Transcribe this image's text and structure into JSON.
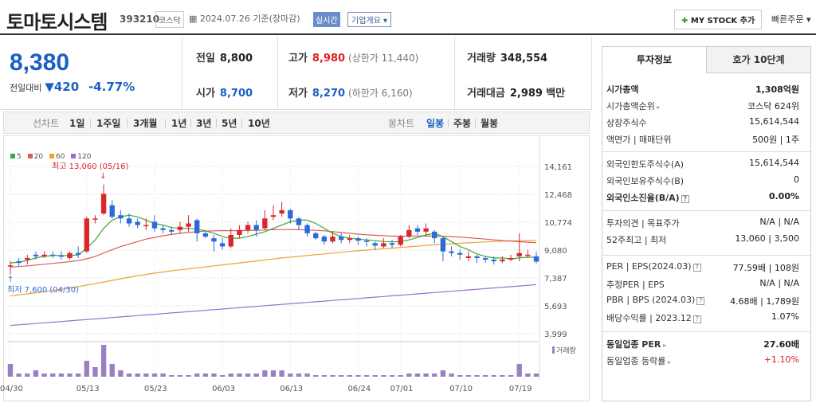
{
  "header": {
    "title": "토마토시스템",
    "code": "393210",
    "market": "코스닥",
    "date": "2024.07.26",
    "date_suffix": "기준(장마감)",
    "realtime": "실시간",
    "corp_overview": "기업개요",
    "mystock_label": "MY STOCK 추가",
    "fast_order": "빠른주문"
  },
  "price": {
    "current": "8,380",
    "change_label": "전일대비",
    "change": "420",
    "change_pct": "-4.77%"
  },
  "stats": {
    "prev_label": "전일",
    "prev": "8,800",
    "high_label": "고가",
    "high": "8,980",
    "upper_label": "(상한가 11,440)",
    "volume_label": "거래량",
    "volume": "348,554",
    "open_label": "시가",
    "open": "8,700",
    "low_label": "저가",
    "low": "8,270",
    "lower_label": "(하한가 6,160)",
    "value_label": "거래대금",
    "value": "2,989",
    "value_unit": "백만"
  },
  "periods": {
    "line_label": "선차트",
    "items": [
      "1일",
      "1주일",
      "3개월",
      "1년",
      "3년",
      "5년",
      "10년"
    ],
    "candle_label": "봉차트",
    "candle_items": [
      "일봉",
      "주봉",
      "월봉"
    ],
    "active_candle": "일봉"
  },
  "chart_data": {
    "type": "candlestick",
    "legend": [
      "5",
      "20",
      "60",
      "120"
    ],
    "legend_colors": [
      "#3aa83a",
      "#e05a5a",
      "#f0a030",
      "#9b6fd0"
    ],
    "y_ticks": [
      "14,161",
      "12,468",
      "10,774",
      "9,080",
      "7,387",
      "5,693",
      "3,999"
    ],
    "ylim": [
      3999,
      14161
    ],
    "x_ticks": [
      "04/30",
      "05/13",
      "05/23",
      "06/03",
      "06/13",
      "06/24",
      "07/01",
      "07/10",
      "07/19"
    ],
    "max_label": "최고 13,060 (05/16)",
    "min_label": "최저 7,600 (04/30)",
    "volume_label": "거래량",
    "candles": [
      [
        8150,
        8150,
        7600,
        8400
      ],
      [
        8400,
        8300,
        8100,
        8600
      ],
      [
        8500,
        8600,
        8200,
        8800
      ],
      [
        8800,
        8700,
        8500,
        9000
      ],
      [
        8700,
        8800,
        8600,
        9000
      ],
      [
        8800,
        8750,
        8600,
        9000
      ],
      [
        8750,
        8700,
        8500,
        9000
      ],
      [
        8600,
        8900,
        8500,
        9000
      ],
      [
        8900,
        8800,
        8600,
        9300
      ],
      [
        9000,
        11000,
        8900,
        11100
      ],
      [
        11000,
        11000,
        10700,
        11200
      ],
      [
        11300,
        12500,
        11200,
        13060
      ],
      [
        11800,
        11100,
        11000,
        12100
      ],
      [
        11200,
        11000,
        10700,
        11500
      ],
      [
        11000,
        10700,
        10500,
        11300
      ],
      [
        10800,
        10600,
        10400,
        11000
      ],
      [
        10600,
        10600,
        10300,
        11000
      ],
      [
        10800,
        10400,
        10200,
        11200
      ],
      [
        10400,
        10300,
        10100,
        10600
      ],
      [
        10300,
        10200,
        10000,
        10500
      ],
      [
        10300,
        10500,
        10100,
        10800
      ],
      [
        10500,
        10700,
        10200,
        11200
      ],
      [
        10900,
        10100,
        9600,
        11000
      ],
      [
        10100,
        9900,
        9800,
        10300
      ],
      [
        9800,
        9600,
        9000,
        10000
      ],
      [
        9500,
        9300,
        9100,
        9800
      ],
      [
        9300,
        10000,
        9200,
        10400
      ],
      [
        10000,
        10300,
        9800,
        10600
      ],
      [
        10300,
        10600,
        10100,
        10800
      ],
      [
        10600,
        10300,
        9900,
        10900
      ],
      [
        10400,
        11000,
        10300,
        11500
      ],
      [
        11100,
        11200,
        10900,
        11800
      ],
      [
        11300,
        11500,
        11100,
        12000
      ],
      [
        11500,
        11000,
        10700,
        11600
      ],
      [
        11000,
        10600,
        10300,
        11100
      ],
      [
        10600,
        10100,
        9900,
        10700
      ],
      [
        10100,
        9800,
        9700,
        10200
      ],
      [
        9900,
        9600,
        9400,
        10000
      ],
      [
        9600,
        9900,
        9500,
        10200
      ],
      [
        9900,
        9700,
        9500,
        10100
      ],
      [
        9700,
        9800,
        9500,
        10000
      ],
      [
        9800,
        9650,
        9400,
        9900
      ],
      [
        9650,
        9600,
        9300,
        9800
      ],
      [
        9500,
        9350,
        9100,
        9600
      ],
      [
        9300,
        9500,
        9200,
        9800
      ],
      [
        9500,
        9400,
        9200,
        9700
      ],
      [
        9400,
        9900,
        9300,
        10000
      ],
      [
        9900,
        10300,
        9800,
        10600
      ],
      [
        10400,
        10200,
        10000,
        10600
      ],
      [
        10200,
        10400,
        10000,
        10700
      ],
      [
        10200,
        9800,
        9500,
        10300
      ],
      [
        9800,
        9000,
        8400,
        9900
      ],
      [
        9000,
        8900,
        8700,
        9300
      ],
      [
        8900,
        8800,
        8500,
        9100
      ],
      [
        8600,
        8700,
        8400,
        9000
      ],
      [
        8700,
        8600,
        8300,
        8800
      ],
      [
        8600,
        8500,
        8300,
        8700
      ],
      [
        8500,
        8400,
        8200,
        8700
      ],
      [
        8400,
        8500,
        8300,
        8700
      ],
      [
        8500,
        8600,
        8400,
        8800
      ],
      [
        8700,
        8900,
        8400,
        10100
      ],
      [
        8800,
        8800,
        8600,
        9100
      ],
      [
        8700,
        8380,
        8270,
        8980
      ]
    ],
    "ma5": [
      8300,
      8350,
      8450,
      8600,
      8700,
      8750,
      8750,
      8750,
      8780,
      9200,
      9700,
      10400,
      10900,
      11100,
      11200,
      11100,
      10900,
      10700,
      10600,
      10450,
      10400,
      10400,
      10350,
      10250,
      10100,
      9900,
      9800,
      9800,
      9900,
      10050,
      10200,
      10400,
      10600,
      10800,
      10900,
      10900,
      10700,
      10400,
      10100,
      9900,
      9800,
      9750,
      9700,
      9650,
      9600,
      9580,
      9600,
      9700,
      9850,
      10000,
      10100,
      9900,
      9600,
      9300,
      9100,
      8850,
      8700,
      8600,
      8600,
      8550,
      8600,
      8650,
      8640
    ],
    "ma20": [
      8050,
      8080,
      8120,
      8170,
      8220,
      8270,
      8320,
      8380,
      8440,
      8550,
      8700,
      8900,
      9100,
      9300,
      9450,
      9600,
      9750,
      9850,
      9950,
      10030,
      10100,
      10150,
      10200,
      10230,
      10250,
      10260,
      10260,
      10260,
      10270,
      10280,
      10300,
      10320,
      10330,
      10330,
      10320,
      10300,
      10280,
      10250,
      10200,
      10150,
      10100,
      10050,
      10010,
      9980,
      9950,
      9930,
      9920,
      9920,
      9930,
      9930,
      9930,
      9920,
      9900,
      9870,
      9830,
      9790,
      9750,
      9700,
      9660,
      9620,
      9590,
      9560,
      9530
    ],
    "ma60": [
      6300,
      6360,
      6420,
      6480,
      6550,
      6620,
      6700,
      6780,
      6860,
      6950,
      7040,
      7140,
      7240,
      7340,
      7430,
      7520,
      7600,
      7680,
      7750,
      7820,
      7880,
      7940,
      8000,
      8060,
      8120,
      8180,
      8240,
      8300,
      8360,
      8420,
      8480,
      8540,
      8600,
      8650,
      8700,
      8750,
      8800,
      8850,
      8900,
      8950,
      9000,
      9040,
      9080,
      9120,
      9160,
      9200,
      9240,
      9280,
      9320,
      9360,
      9400,
      9430,
      9460,
      9490,
      9520,
      9550,
      9580,
      9600,
      9620,
      9640,
      9650,
      9660,
      9670
    ],
    "ma120": [
      4500,
      4540,
      4580,
      4620,
      4660,
      4700,
      4740,
      4780,
      4820,
      4860,
      4900,
      4940,
      4980,
      5020,
      5060,
      5100,
      5140,
      5180,
      5220,
      5260,
      5300,
      5340,
      5380,
      5420,
      5460,
      5500,
      5540,
      5580,
      5620,
      5660,
      5700,
      5740,
      5780,
      5820,
      5860,
      5900,
      5940,
      5980,
      6020,
      6060,
      6100,
      6140,
      6180,
      6220,
      6260,
      6300,
      6340,
      6380,
      6420,
      6460,
      6500,
      6540,
      6580,
      6620,
      6660,
      6700,
      6740,
      6780,
      6820,
      6860,
      6900,
      6940,
      6980
    ],
    "volume": [
      4,
      1,
      1,
      2,
      1,
      1,
      1,
      1,
      1,
      5,
      3,
      10,
      4,
      2,
      1,
      1,
      1,
      1,
      1,
      0.5,
      0.5,
      0.5,
      1,
      1,
      1,
      0.5,
      1,
      1,
      1,
      1,
      2,
      2,
      2,
      1,
      1,
      1,
      0.5,
      0.5,
      0.5,
      0.5,
      0.5,
      0.5,
      0.5,
      0.5,
      0.5,
      0.5,
      0.5,
      1,
      1,
      1,
      1,
      2,
      1,
      0.5,
      0.5,
      0.5,
      0.5,
      0.5,
      0.5,
      0.5,
      4,
      1,
      1
    ]
  },
  "right": {
    "tab_info": "투자정보",
    "tab_order": "호가 10단계",
    "rows1": [
      {
        "l": "시가총액",
        "r": "1,308억원",
        "bold": true
      },
      {
        "l": "시가총액순위",
        "r": "코스닥 624위"
      },
      {
        "l": "상장주식수",
        "r": "15,614,544"
      },
      {
        "l": "액면가 | 매매단위",
        "r": "500원 | 1주"
      }
    ],
    "rows2": [
      {
        "l": "외국인한도주식수(A)",
        "r": "15,614,544"
      },
      {
        "l": "외국인보유주식수(B)",
        "r": "0"
      },
      {
        "l": "외국인소진율(B/A)",
        "r": "0.00%",
        "bold": true
      }
    ],
    "rows3": [
      {
        "l": "투자의견 | 목표주가",
        "r": "N/A | N/A"
      },
      {
        "l": "52주최고 | 최저",
        "r": "13,060 | 3,500"
      }
    ],
    "rows4": [
      {
        "l": "PER | EPS(2024.03)",
        "r": "77.59배 | 108원"
      },
      {
        "l": "추정PER | EPS",
        "r": "N/A | N/A"
      },
      {
        "l": "PBR | BPS (2024.03)",
        "r": "4.68배 | 1,789원"
      },
      {
        "l": "배당수익률 | 2023.12",
        "r": "1.07%"
      }
    ],
    "rows5": [
      {
        "l": "동일업종 PER",
        "r": "27.60배",
        "bold": true
      },
      {
        "l": "동일업종 등락률",
        "r": "+1.10%"
      }
    ]
  }
}
